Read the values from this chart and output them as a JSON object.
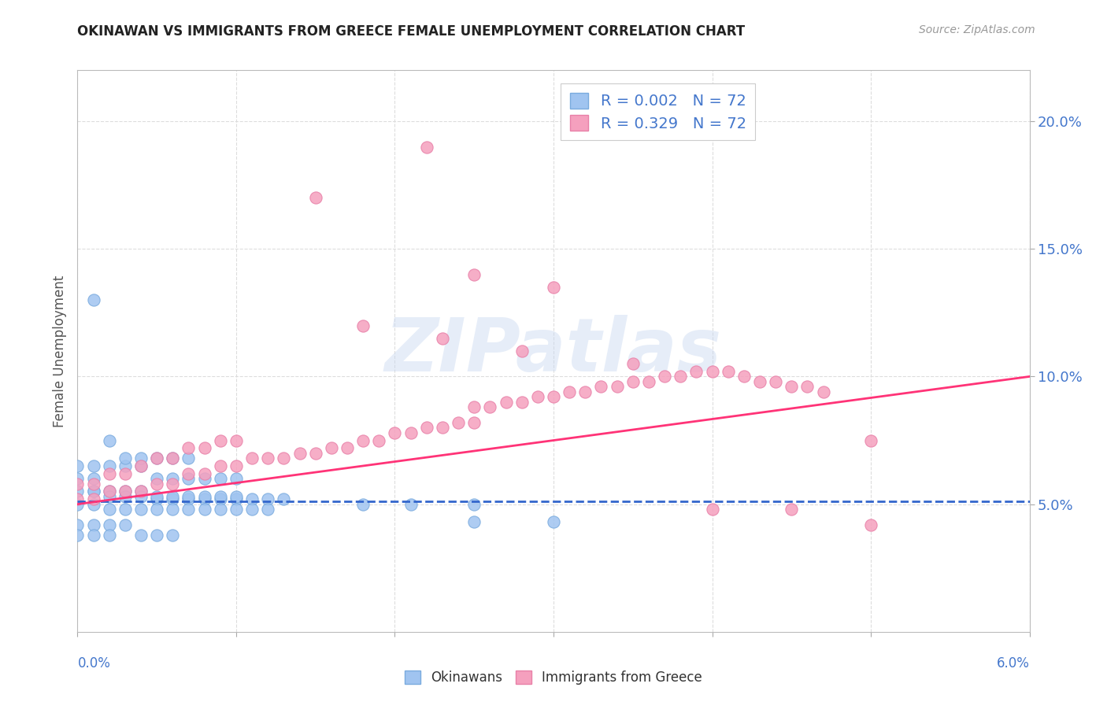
{
  "title": "OKINAWAN VS IMMIGRANTS FROM GREECE FEMALE UNEMPLOYMENT CORRELATION CHART",
  "source": "Source: ZipAtlas.com",
  "ylabel": "Female Unemployment",
  "xlim": [
    0.0,
    0.06
  ],
  "ylim": [
    0.0,
    0.22
  ],
  "x_tick_left": "0.0%",
  "x_tick_right": "6.0%",
  "y_ticks": [
    0.05,
    0.1,
    0.15,
    0.2
  ],
  "y_tick_labels": [
    "5.0%",
    "10.0%",
    "15.0%",
    "20.0%"
  ],
  "blue_color": "#a0c4f0",
  "pink_color": "#f5a0be",
  "blue_edge": "#7aabde",
  "pink_edge": "#e880a8",
  "blue_line_color": "#3366cc",
  "pink_line_color": "#ff3377",
  "legend_blue_r": "0.002",
  "legend_blue_n": "72",
  "legend_pink_r": "0.329",
  "legend_pink_n": "72",
  "okinawan_label": "Okinawans",
  "greece_label": "Immigrants from Greece",
  "watermark_text": "ZIPatlas",
  "grid_color": "#dddddd",
  "blue_scatter_x": [
    0.001,
    0.001,
    0.002,
    0.002,
    0.003,
    0.003,
    0.004,
    0.004,
    0.005,
    0.005,
    0.006,
    0.006,
    0.007,
    0.007,
    0.008,
    0.008,
    0.009,
    0.009,
    0.01,
    0.01,
    0.011,
    0.012,
    0.013,
    0.0,
    0.0,
    0.0,
    0.0,
    0.001,
    0.001,
    0.001,
    0.002,
    0.002,
    0.003,
    0.003,
    0.004,
    0.004,
    0.005,
    0.005,
    0.006,
    0.006,
    0.007,
    0.007,
    0.008,
    0.008,
    0.009,
    0.009,
    0.01,
    0.01,
    0.011,
    0.012,
    0.0,
    0.0,
    0.001,
    0.001,
    0.002,
    0.002,
    0.003,
    0.004,
    0.005,
    0.006,
    0.018,
    0.021,
    0.025,
    0.025,
    0.03,
    0.003,
    0.004,
    0.005,
    0.006,
    0.007,
    0.001,
    0.002
  ],
  "blue_scatter_y": [
    0.055,
    0.065,
    0.055,
    0.065,
    0.055,
    0.065,
    0.055,
    0.065,
    0.052,
    0.06,
    0.052,
    0.06,
    0.052,
    0.06,
    0.052,
    0.06,
    0.052,
    0.06,
    0.052,
    0.06,
    0.052,
    0.052,
    0.052,
    0.05,
    0.055,
    0.06,
    0.065,
    0.05,
    0.055,
    0.06,
    0.048,
    0.053,
    0.048,
    0.053,
    0.048,
    0.053,
    0.048,
    0.053,
    0.048,
    0.053,
    0.048,
    0.053,
    0.048,
    0.053,
    0.048,
    0.053,
    0.048,
    0.053,
    0.048,
    0.048,
    0.042,
    0.038,
    0.042,
    0.038,
    0.042,
    0.038,
    0.042,
    0.038,
    0.038,
    0.038,
    0.05,
    0.05,
    0.05,
    0.043,
    0.043,
    0.068,
    0.068,
    0.068,
    0.068,
    0.068,
    0.13,
    0.075
  ],
  "pink_scatter_x": [
    0.0,
    0.0,
    0.001,
    0.001,
    0.002,
    0.002,
    0.003,
    0.003,
    0.004,
    0.004,
    0.005,
    0.005,
    0.006,
    0.006,
    0.007,
    0.007,
    0.008,
    0.008,
    0.009,
    0.009,
    0.01,
    0.01,
    0.011,
    0.012,
    0.013,
    0.014,
    0.015,
    0.016,
    0.017,
    0.018,
    0.019,
    0.02,
    0.021,
    0.022,
    0.023,
    0.024,
    0.025,
    0.025,
    0.026,
    0.027,
    0.028,
    0.029,
    0.03,
    0.031,
    0.032,
    0.033,
    0.034,
    0.035,
    0.036,
    0.037,
    0.038,
    0.039,
    0.04,
    0.041,
    0.042,
    0.043,
    0.044,
    0.045,
    0.046,
    0.047,
    0.025,
    0.03,
    0.05,
    0.04,
    0.045,
    0.05,
    0.018,
    0.023,
    0.028,
    0.035,
    0.015,
    0.022
  ],
  "pink_scatter_y": [
    0.052,
    0.058,
    0.052,
    0.058,
    0.055,
    0.062,
    0.055,
    0.062,
    0.055,
    0.065,
    0.058,
    0.068,
    0.058,
    0.068,
    0.062,
    0.072,
    0.062,
    0.072,
    0.065,
    0.075,
    0.065,
    0.075,
    0.068,
    0.068,
    0.068,
    0.07,
    0.07,
    0.072,
    0.072,
    0.075,
    0.075,
    0.078,
    0.078,
    0.08,
    0.08,
    0.082,
    0.082,
    0.088,
    0.088,
    0.09,
    0.09,
    0.092,
    0.092,
    0.094,
    0.094,
    0.096,
    0.096,
    0.098,
    0.098,
    0.1,
    0.1,
    0.102,
    0.102,
    0.102,
    0.1,
    0.098,
    0.098,
    0.096,
    0.096,
    0.094,
    0.14,
    0.135,
    0.075,
    0.048,
    0.048,
    0.042,
    0.12,
    0.115,
    0.11,
    0.105,
    0.17,
    0.19
  ]
}
